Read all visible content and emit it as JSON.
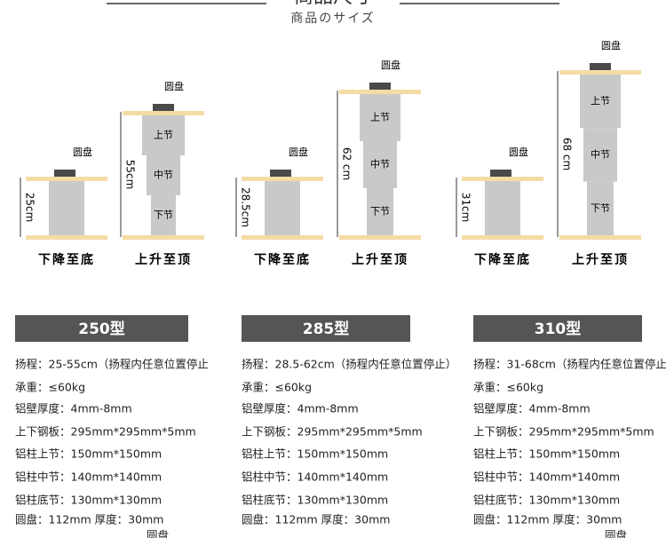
{
  "header": {
    "title": "商品尺寸",
    "subtitle": "商品のサイズ"
  },
  "models": [
    {
      "name": "250型",
      "collapsed": {
        "disk_label": "圆盘",
        "height": "25cm",
        "caption": "下降至底"
      },
      "extended": {
        "disk_label": "圆盘",
        "segments": [
          "上节",
          "中节",
          "下节"
        ],
        "height": "55cm",
        "caption": "上升至顶"
      },
      "specs": [
        "扬程：25-55cm（扬程内任意位置停止",
        "承重：≤60kg",
        "铝壁厚度：4mm-8mm",
        "上下钢板：295mm*295mm*5mm",
        "铝柱上节：150mm*150mm",
        "铝柱中节：140mm*140mm",
        "铝柱底节：130mm*130mm",
        "圆盘：112mm    厚度：30mm",
        "圆盘"
      ]
    },
    {
      "name": "285型",
      "collapsed": {
        "disk_label": "圆盘",
        "height": "28.5cm",
        "caption": "下降至底"
      },
      "extended": {
        "disk_label": "圆盘",
        "segments": [
          "上节",
          "中节",
          "下节"
        ],
        "height": "62 cm",
        "caption": "上升至顶"
      },
      "specs": [
        "扬程：28.5-62cm（扬程内任意位置停止）",
        "承重：≤60kg",
        "铝壁厚度：4mm-8mm",
        "上下钢板：295mm*295mm*5mm",
        "铝柱上节：150mm*150mm",
        "铝柱中节：140mm*140mm",
        "铝柱底节：130mm*130mm",
        "圆盘：112mm    厚度：30mm"
      ]
    },
    {
      "name": "310型",
      "collapsed": {
        "disk_label": "圆盘",
        "height": "31cm",
        "caption": "下降至底"
      },
      "extended": {
        "disk_label": "圆盘",
        "segments": [
          "上节",
          "中节",
          "下节"
        ],
        "height": "68 cm",
        "caption": "上升至顶"
      },
      "specs": [
        "扬程：31-68cm（扬程内任意位置停止",
        "承重：≤60kg",
        "铝壁厚度：4mm-8mm",
        "上下钢板：295mm*295mm*5mm",
        "铝柱上节：150mm*150mm",
        "铝柱中节：140mm*140mm",
        "铝柱底节：130mm*130mm",
        "圆盘：112mm    厚度：30mm",
        "圆盘"
      ]
    }
  ]
}
